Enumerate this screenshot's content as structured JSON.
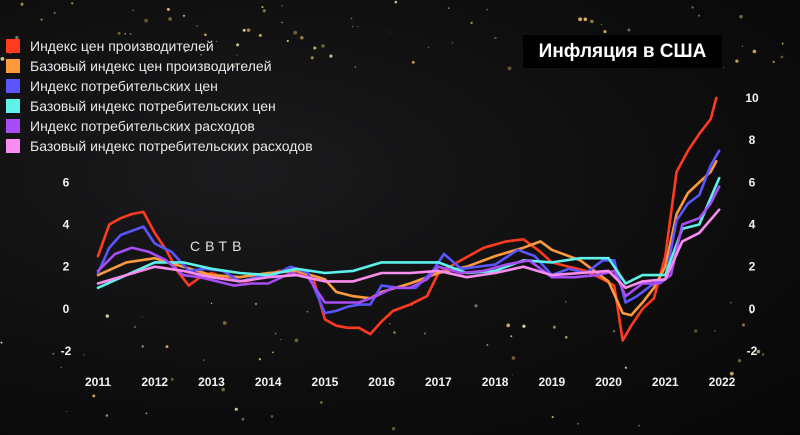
{
  "chart_data": {
    "type": "line",
    "title": "Инфляция в США",
    "xlabel": "",
    "ylabel": "",
    "x_ticks": [
      "2011",
      "2012",
      "2013",
      "2014",
      "2015",
      "2016",
      "2017",
      "2018",
      "2019",
      "2020",
      "2021",
      "2022"
    ],
    "xlim": [
      2011,
      2022
    ],
    "ylim": [
      -2,
      10
    ],
    "y_ticks_left": [
      "6",
      "4",
      "2",
      "0",
      "-2"
    ],
    "y_ticks_right": [
      "10",
      "8",
      "6",
      "4",
      "2",
      "0",
      "-2"
    ],
    "grid": false,
    "legend_position": "top-left",
    "series": [
      {
        "name": "Индекс цен производителей",
        "color": "#ff3b1f",
        "x": [
          2011.0,
          2011.2,
          2011.4,
          2011.6,
          2011.8,
          2012.0,
          2012.2,
          2012.4,
          2012.6,
          2012.8,
          2013.0,
          2013.3,
          2013.6,
          2013.9,
          2014.2,
          2014.5,
          2014.8,
          2015.0,
          2015.2,
          2015.4,
          2015.6,
          2015.8,
          2016.0,
          2016.2,
          2016.5,
          2016.8,
          2017.0,
          2017.4,
          2017.8,
          2018.2,
          2018.5,
          2018.8,
          2019.0,
          2019.3,
          2019.6,
          2019.9,
          2020.1,
          2020.25,
          2020.4,
          2020.6,
          2020.8,
          2021.0,
          2021.2,
          2021.4,
          2021.6,
          2021.8,
          2021.9
        ],
        "y": [
          2.5,
          4.0,
          4.3,
          4.5,
          4.6,
          3.6,
          2.8,
          1.8,
          1.1,
          1.5,
          1.7,
          1.4,
          1.3,
          1.5,
          1.8,
          1.8,
          1.4,
          -0.5,
          -0.8,
          -0.9,
          -0.9,
          -1.2,
          -0.6,
          -0.1,
          0.2,
          0.6,
          1.7,
          2.3,
          2.9,
          3.2,
          3.3,
          2.7,
          2.2,
          2.0,
          1.8,
          1.4,
          1.1,
          -1.5,
          -0.8,
          0.0,
          0.5,
          2.5,
          6.5,
          7.5,
          8.3,
          9.0,
          10.0
        ]
      },
      {
        "name": "Базовый индекс цен производителей",
        "color": "#ff9a3c",
        "x": [
          2011.0,
          2011.5,
          2012.0,
          2012.5,
          2013.0,
          2013.5,
          2014.0,
          2014.5,
          2015.0,
          2015.2,
          2015.5,
          2015.8,
          2016.0,
          2016.5,
          2017.0,
          2017.5,
          2018.0,
          2018.5,
          2018.8,
          2019.0,
          2019.5,
          2020.0,
          2020.25,
          2020.4,
          2020.6,
          2020.8,
          2021.0,
          2021.2,
          2021.4,
          2021.6,
          2021.8,
          2021.9
        ],
        "y": [
          1.6,
          2.2,
          2.4,
          2.0,
          1.6,
          1.5,
          1.7,
          1.8,
          1.4,
          0.8,
          0.6,
          0.5,
          0.8,
          1.2,
          1.7,
          2.0,
          2.5,
          2.9,
          3.2,
          2.8,
          2.3,
          1.3,
          -0.2,
          -0.3,
          0.3,
          1.0,
          2.0,
          4.5,
          5.5,
          6.0,
          6.5,
          7.0
        ]
      },
      {
        "name": "Индекс потребительских цен",
        "color": "#5a55ff",
        "x": [
          2011.0,
          2011.2,
          2011.4,
          2011.6,
          2011.8,
          2012.0,
          2012.3,
          2012.6,
          2012.9,
          2013.2,
          2013.5,
          2013.8,
          2014.1,
          2014.4,
          2014.7,
          2015.0,
          2015.2,
          2015.4,
          2015.6,
          2015.8,
          2016.0,
          2016.3,
          2016.6,
          2016.9,
          2017.1,
          2017.4,
          2017.7,
          2018.0,
          2018.4,
          2018.7,
          2019.0,
          2019.3,
          2019.6,
          2019.9,
          2020.1,
          2020.3,
          2020.5,
          2020.8,
          2021.0,
          2021.2,
          2021.4,
          2021.6,
          2021.8,
          2021.95
        ],
        "y": [
          1.7,
          2.9,
          3.5,
          3.7,
          3.9,
          3.1,
          2.7,
          1.8,
          1.9,
          1.8,
          1.3,
          1.5,
          1.6,
          2.0,
          1.7,
          -0.2,
          -0.1,
          0.1,
          0.2,
          0.2,
          1.1,
          1.0,
          1.0,
          1.8,
          2.6,
          1.9,
          2.0,
          2.1,
          2.8,
          2.5,
          1.6,
          1.9,
          1.7,
          2.3,
          2.3,
          0.3,
          0.6,
          1.2,
          1.4,
          4.2,
          5.0,
          5.4,
          6.8,
          7.5
        ]
      },
      {
        "name": "Базовый индекс потребительских цен",
        "color": "#5ef2ea",
        "x": [
          2011.0,
          2011.5,
          2012.0,
          2012.5,
          2013.0,
          2013.5,
          2014.0,
          2014.5,
          2015.0,
          2015.5,
          2016.0,
          2016.5,
          2017.0,
          2017.5,
          2018.0,
          2018.5,
          2019.0,
          2019.5,
          2020.0,
          2020.3,
          2020.6,
          2021.0,
          2021.3,
          2021.6,
          2021.95
        ],
        "y": [
          1.0,
          1.6,
          2.2,
          2.2,
          1.9,
          1.7,
          1.6,
          1.9,
          1.7,
          1.8,
          2.2,
          2.2,
          2.2,
          1.7,
          1.8,
          2.3,
          2.2,
          2.4,
          2.4,
          1.2,
          1.6,
          1.6,
          3.8,
          4.0,
          6.2
        ]
      },
      {
        "name": "Индекс потребительских расходов",
        "color": "#a84df5",
        "x": [
          2011.0,
          2011.3,
          2011.6,
          2011.9,
          2012.2,
          2012.5,
          2012.8,
          2013.1,
          2013.4,
          2013.7,
          2014.0,
          2014.4,
          2014.7,
          2015.0,
          2015.3,
          2015.6,
          2015.9,
          2016.2,
          2016.5,
          2016.8,
          2017.0,
          2017.4,
          2017.8,
          2018.2,
          2018.6,
          2019.0,
          2019.4,
          2019.8,
          2020.1,
          2020.3,
          2020.6,
          2020.9,
          2021.1,
          2021.3,
          2021.6,
          2021.8,
          2021.95
        ],
        "y": [
          1.8,
          2.6,
          2.9,
          2.7,
          2.3,
          1.6,
          1.5,
          1.3,
          1.1,
          1.2,
          1.2,
          1.7,
          1.5,
          0.3,
          0.3,
          0.3,
          0.6,
          1.0,
          1.0,
          1.4,
          2.0,
          1.7,
          1.8,
          2.1,
          2.3,
          1.5,
          1.5,
          1.6,
          1.8,
          0.6,
          1.2,
          1.2,
          1.6,
          4.0,
          4.3,
          5.0,
          5.8
        ]
      },
      {
        "name": "Базовый индекс потребительских расходов",
        "color": "#f98df0",
        "x": [
          2011.0,
          2011.5,
          2012.0,
          2012.5,
          2013.0,
          2013.5,
          2014.0,
          2014.5,
          2015.0,
          2015.5,
          2016.0,
          2016.5,
          2017.0,
          2017.5,
          2018.0,
          2018.5,
          2019.0,
          2019.5,
          2020.0,
          2020.3,
          2020.6,
          2021.0,
          2021.3,
          2021.6,
          2021.95
        ],
        "y": [
          1.2,
          1.6,
          2.0,
          1.8,
          1.5,
          1.3,
          1.5,
          1.6,
          1.3,
          1.3,
          1.7,
          1.7,
          1.8,
          1.5,
          1.7,
          2.0,
          1.6,
          1.7,
          1.8,
          1.0,
          1.3,
          1.4,
          3.2,
          3.6,
          4.7
        ]
      }
    ]
  }
}
